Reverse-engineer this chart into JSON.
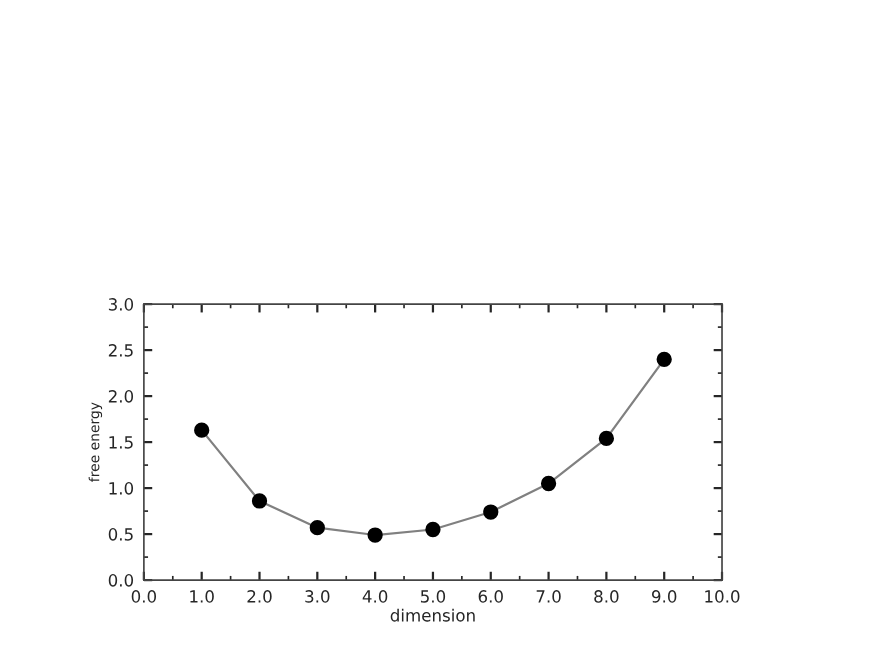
{
  "chart_data": {
    "type": "line",
    "xlabel": "dimension",
    "ylabel": "free energy",
    "x": [
      1,
      2,
      3,
      4,
      5,
      6,
      7,
      8,
      9
    ],
    "series": [
      {
        "color": "#000000",
        "values": [
          1.63,
          0.86,
          0.57,
          0.49,
          0.55,
          0.74,
          1.05,
          1.54,
          2.4
        ]
      }
    ],
    "xlim": [
      0,
      10
    ],
    "ylim": [
      0,
      3
    ],
    "xticks": [
      {
        "value": 0,
        "label": "0.0"
      },
      {
        "value": 1,
        "label": "1.0"
      },
      {
        "value": 2,
        "label": "2.0"
      },
      {
        "value": 3,
        "label": "3.0"
      },
      {
        "value": 4,
        "label": "4.0"
      },
      {
        "value": 5,
        "label": "5.0"
      },
      {
        "value": 6,
        "label": "6.0"
      },
      {
        "value": 7,
        "label": "7.0"
      },
      {
        "value": 8,
        "label": "8.0"
      },
      {
        "value": 9,
        "label": "9.0"
      },
      {
        "value": 10,
        "label": "10.0"
      }
    ],
    "yticks": [
      {
        "value": 0,
        "label": "0.0"
      },
      {
        "value": 0.5,
        "label": "0.5"
      },
      {
        "value": 1,
        "label": "1.0"
      },
      {
        "value": 1.5,
        "label": "1.5"
      },
      {
        "value": 2,
        "label": "2.0"
      },
      {
        "value": 2.5,
        "label": "2.5"
      },
      {
        "value": 3,
        "label": "3.0"
      }
    ],
    "marker": "circle",
    "line_style": "solid",
    "grid": false,
    "legend": false
  }
}
